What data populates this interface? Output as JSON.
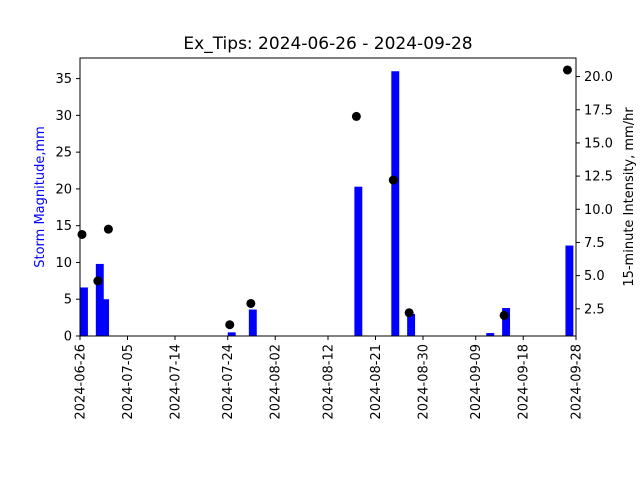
{
  "chart_data": {
    "type": "bar",
    "title": "Ex_Tips: 2024-06-26 - 2024-09-28",
    "ylabel": "Storm Magnitude,mm",
    "y2label": "15-minute Intensity,  mm/hr",
    "xlim": [
      "2024-06-26",
      "2024-09-28"
    ],
    "ylim": [
      0,
      37.8
    ],
    "y2lim": [
      0.45,
      21.4
    ],
    "x_ticks": [
      "2024-06-26",
      "2024-07-05",
      "2024-07-14",
      "2024-07-24",
      "2024-08-02",
      "2024-08-12",
      "2024-08-21",
      "2024-08-30",
      "2024-09-09",
      "2024-09-18",
      "2024-09-28"
    ],
    "y_ticks": [
      0,
      5,
      10,
      15,
      20,
      25,
      30,
      35
    ],
    "y2_ticks": [
      2.5,
      5.0,
      7.5,
      10.0,
      12.5,
      15.0,
      17.5,
      20.0
    ],
    "y2_tick_labels": [
      "2.5",
      "5.0",
      "7.5",
      "10.0",
      "12.5",
      "15.0",
      "17.5",
      "20.0"
    ],
    "colors": {
      "bars": "#0000ff",
      "points": "#000000",
      "ylabel": "#0000ff",
      "y2label": "#000000"
    },
    "series": [
      {
        "kind": "bar",
        "axis": "left",
        "x": [
          "2024-06-26",
          "2024-06-29",
          "2024-06-30",
          "2024-07-24",
          "2024-07-28",
          "2024-08-17",
          "2024-08-24",
          "2024-08-27",
          "2024-09-11",
          "2024-09-14",
          "2024-09-26"
        ],
        "values": [
          6.6,
          9.8,
          5.0,
          0.5,
          3.6,
          20.3,
          36.0,
          3.0,
          0.4,
          3.8,
          12.3
        ]
      },
      {
        "kind": "scatter",
        "axis": "right",
        "x": [
          "2024-06-26",
          "2024-06-29",
          "2024-07-01",
          "2024-07-24",
          "2024-07-28",
          "2024-08-17",
          "2024-08-24",
          "2024-08-27",
          "2024-09-14",
          "2024-09-26"
        ],
        "values": [
          8.1,
          4.6,
          8.5,
          1.3,
          2.9,
          17.0,
          12.2,
          2.2,
          2.0,
          20.5
        ]
      }
    ]
  }
}
